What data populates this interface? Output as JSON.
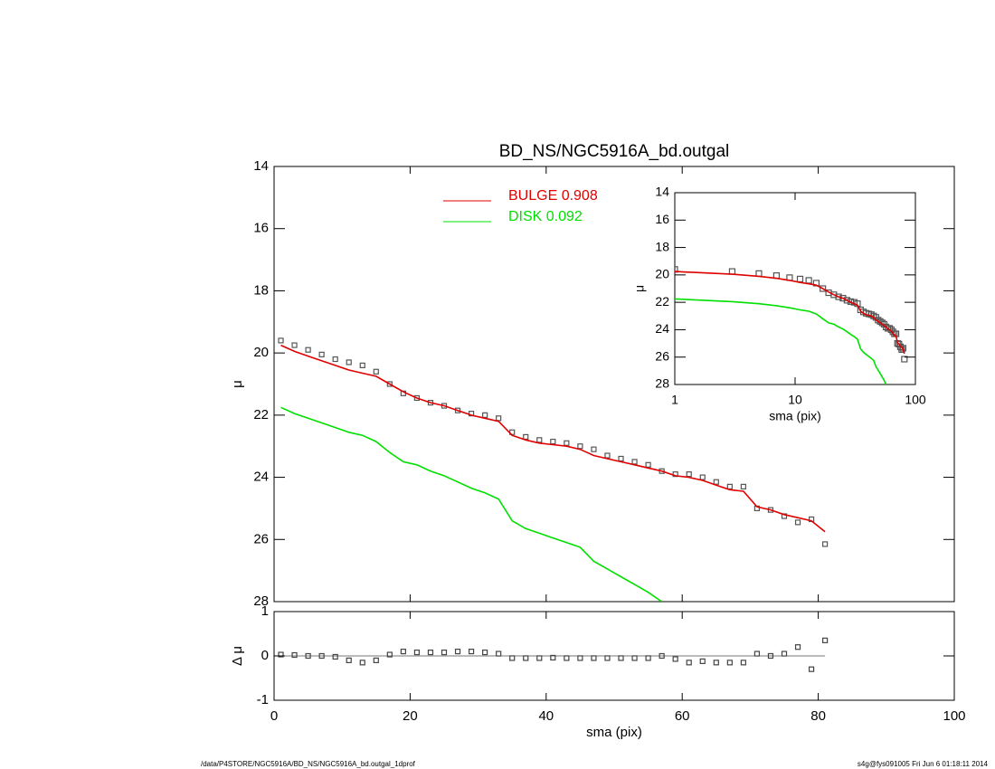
{
  "chart_data": [
    {
      "type": "line",
      "title": "BD_NS/NGC5916A_bd.outgal",
      "ylabel": "μ",
      "x": [
        1,
        3,
        5,
        7,
        9,
        11,
        13,
        15,
        17,
        19,
        21,
        23,
        25,
        27,
        29,
        31,
        33,
        35,
        37,
        39,
        41,
        43,
        45,
        47,
        49,
        51,
        53,
        55,
        57,
        59,
        61,
        63,
        65,
        67,
        69,
        71,
        73,
        75,
        77,
        79,
        81
      ],
      "series": [
        {
          "color": "#555555",
          "marker": "square",
          "values": [
            19.6,
            19.75,
            19.9,
            20.05,
            20.2,
            20.3,
            20.4,
            20.6,
            21.0,
            21.3,
            21.45,
            21.6,
            21.7,
            21.85,
            21.95,
            22.0,
            22.1,
            22.55,
            22.7,
            22.8,
            22.85,
            22.9,
            23.0,
            23.1,
            23.3,
            23.4,
            23.5,
            23.6,
            23.8,
            23.9,
            23.9,
            24.0,
            24.15,
            24.3,
            24.3,
            25.0,
            25.05,
            25.25,
            25.45,
            25.35,
            26.15
          ]
        },
        {
          "name": "BULGE  0.908",
          "color": "#e00000",
          "values": [
            19.75,
            19.95,
            20.1,
            20.25,
            20.4,
            20.55,
            20.65,
            20.75,
            21.0,
            21.25,
            21.45,
            21.6,
            21.7,
            21.85,
            22.0,
            22.1,
            22.2,
            22.65,
            22.8,
            22.9,
            22.95,
            23.0,
            23.1,
            23.3,
            23.4,
            23.5,
            23.6,
            23.7,
            23.8,
            23.95,
            24.0,
            24.1,
            24.25,
            24.4,
            24.45,
            24.95,
            25.05,
            25.2,
            25.3,
            25.4,
            25.75
          ]
        },
        {
          "name": "DISK  0.092",
          "color": "#00e000",
          "values": [
            21.75,
            21.95,
            22.1,
            22.25,
            22.4,
            22.55,
            22.65,
            22.85,
            23.2,
            23.5,
            23.6,
            23.8,
            23.95,
            24.15,
            24.35,
            24.5,
            24.7,
            25.4,
            25.65,
            25.8,
            25.95,
            26.1,
            26.25,
            26.7,
            26.95,
            27.2,
            27.45,
            27.7,
            28.0,
            null,
            null,
            null,
            null,
            null,
            null,
            null,
            null,
            null,
            null,
            null,
            null
          ]
        }
      ],
      "xlim": [
        0,
        100
      ],
      "ylim": [
        28,
        14
      ],
      "yticks": [
        14,
        16,
        18,
        20,
        22,
        24,
        26,
        28
      ]
    },
    {
      "type": "scatter",
      "ylabel": "Δ μ",
      "xlabel": "sma (pix)",
      "values": [
        0.03,
        0.02,
        0.0,
        0.0,
        -0.02,
        -0.1,
        -0.15,
        -0.1,
        0.03,
        0.1,
        0.08,
        0.08,
        0.08,
        0.1,
        0.1,
        0.08,
        0.05,
        -0.05,
        -0.05,
        -0.05,
        -0.04,
        -0.05,
        -0.05,
        -0.05,
        -0.05,
        -0.05,
        -0.05,
        -0.05,
        0.0,
        -0.07,
        -0.15,
        -0.12,
        -0.15,
        -0.15,
        -0.15,
        0.05,
        0.0,
        0.05,
        0.2,
        -0.3,
        0.35
      ],
      "xlim": [
        0,
        100
      ],
      "xticks": [
        0,
        20,
        40,
        60,
        80,
        100
      ],
      "ylim": [
        -1,
        1
      ],
      "yticks": [
        -1,
        0,
        1
      ]
    },
    {
      "type": "inset",
      "ylabel": "μ",
      "xlabel": "sma (pix)",
      "log_x": true,
      "xlim": [
        1,
        100
      ],
      "xticks": [
        1,
        10,
        100
      ],
      "ylim": [
        28,
        14
      ],
      "yticks": [
        14,
        16,
        18,
        20,
        22,
        24,
        26,
        28
      ]
    }
  ],
  "footer": {
    "left": "/data/P4STORE/NGC5916A/BD_NS/NGC5916A_bd.outgal_1dprof",
    "right": "s4g@fys091005  Fri Jun  6 01:18:11 2014"
  }
}
